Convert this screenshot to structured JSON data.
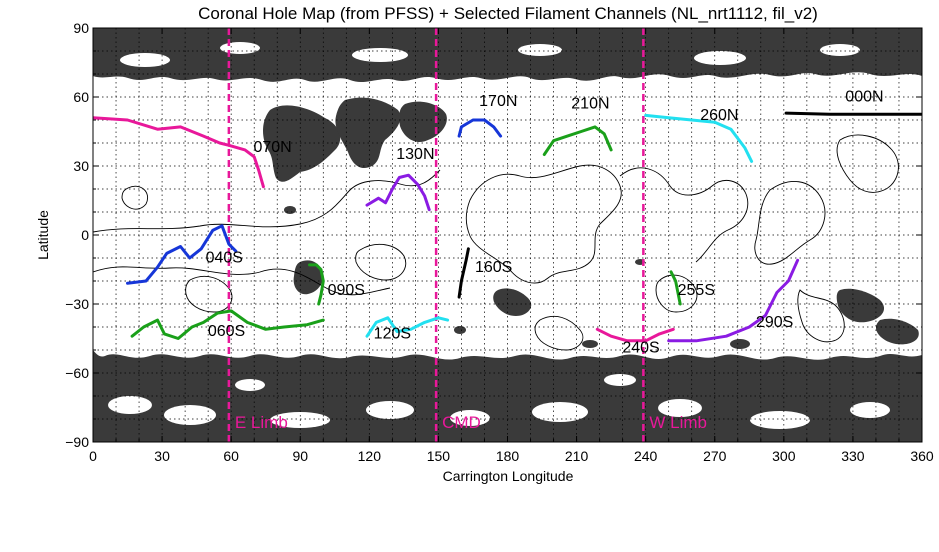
{
  "chart_data": {
    "type": "line",
    "title": "Coronal Hole Map (from PFSS) + Selected Filament Channels (NL_nrt1112, fil_v2)",
    "xlabel": "Carrington Longitude",
    "ylabel": "Latitude",
    "xlim": [
      0,
      360
    ],
    "ylim": [
      -90,
      90
    ],
    "xticks": [
      "0",
      "30",
      "60",
      "90",
      "120",
      "150",
      "180",
      "210",
      "240",
      "270",
      "300",
      "330",
      "360"
    ],
    "yticks": [
      "90",
      "60",
      "30",
      "0",
      "−30",
      "−60",
      "−90"
    ],
    "grid": true,
    "coronal_hole_color": "#3a3a3a",
    "limb_color": "#e8189a",
    "limbs": [
      {
        "name": "E Limb",
        "x": 59
      },
      {
        "name": "CMD",
        "x": 149
      },
      {
        "name": "W Limb",
        "x": 239
      }
    ],
    "channels": [
      {
        "name": "000N",
        "color": "#000000",
        "label_at": [
          335,
          58
        ],
        "points": [
          [
            301,
            53
          ],
          [
            320,
            52.5
          ],
          [
            340,
            52.5
          ],
          [
            360,
            52.5
          ]
        ]
      },
      {
        "name": "070N",
        "color": "#e8189a",
        "label_at": [
          78,
          36
        ],
        "points": [
          [
            0,
            51
          ],
          [
            15,
            50
          ],
          [
            28,
            46
          ],
          [
            38,
            47
          ],
          [
            48,
            43
          ],
          [
            55,
            40
          ],
          [
            59,
            39
          ]
        ]
      },
      {
        "name": "070N-b",
        "color": "#e8189a",
        "label_at": null,
        "points": [
          [
            59,
            39
          ],
          [
            66,
            37
          ],
          [
            70,
            34
          ],
          [
            72,
            28
          ],
          [
            74,
            21
          ]
        ]
      },
      {
        "name": "130N",
        "color": "#8a1be3",
        "label_at": [
          140,
          33
        ],
        "points": [
          [
            119,
            13
          ],
          [
            124,
            16
          ],
          [
            127,
            14
          ],
          [
            130,
            20
          ],
          [
            133,
            25
          ],
          [
            137,
            26
          ],
          [
            141,
            22
          ],
          [
            144,
            17
          ],
          [
            146,
            11
          ]
        ]
      },
      {
        "name": "170N",
        "color": "#1636d8",
        "label_at": [
          176,
          56
        ],
        "points": [
          [
            159,
            43
          ],
          [
            160,
            47
          ],
          [
            165,
            50
          ],
          [
            170,
            50
          ],
          [
            174,
            47
          ],
          [
            177,
            43
          ]
        ]
      },
      {
        "name": "210N",
        "color": "#1aa01a",
        "label_at": [
          216,
          55
        ],
        "points": [
          [
            196,
            35
          ],
          [
            200,
            41
          ],
          [
            206,
            43
          ],
          [
            212,
            45
          ],
          [
            218,
            47
          ],
          [
            222,
            44
          ],
          [
            225,
            37
          ]
        ]
      },
      {
        "name": "260N",
        "color": "#22e0f0",
        "label_at": [
          272,
          50
        ],
        "points": [
          [
            240,
            52
          ],
          [
            250,
            51
          ],
          [
            260,
            50
          ],
          [
            270,
            49
          ],
          [
            277,
            46
          ],
          [
            283,
            38
          ],
          [
            286,
            32
          ]
        ]
      },
      {
        "name": "040S",
        "color": "#1636d8",
        "label_at": [
          57,
          -12
        ],
        "points": [
          [
            15,
            -21
          ],
          [
            23,
            -20
          ],
          [
            28,
            -14
          ],
          [
            32,
            -8
          ],
          [
            38,
            -5
          ],
          [
            42,
            -10
          ],
          [
            47,
            -6
          ],
          [
            52,
            2
          ],
          [
            56,
            4
          ],
          [
            59,
            -4
          ],
          [
            62,
            -7
          ]
        ]
      },
      {
        "name": "060S",
        "color": "#1aa01a",
        "label_at": [
          58,
          -44
        ],
        "points": [
          [
            17,
            -44
          ],
          [
            22,
            -40
          ],
          [
            28,
            -37
          ],
          [
            31,
            -43
          ],
          [
            37,
            -45
          ],
          [
            43,
            -40
          ],
          [
            48,
            -38
          ],
          [
            54,
            -34
          ],
          [
            60,
            -33
          ],
          [
            67,
            -38
          ],
          [
            75,
            -41
          ],
          [
            83,
            -40
          ],
          [
            93,
            -39
          ],
          [
            100,
            -37
          ]
        ]
      },
      {
        "name": "090S",
        "color": "#1aa01a",
        "label_at": [
          110,
          -26
        ],
        "points": [
          [
            94,
            -13
          ],
          [
            97,
            -13
          ],
          [
            99,
            -15
          ],
          [
            100,
            -20
          ],
          [
            99,
            -26
          ],
          [
            98,
            -30
          ]
        ]
      },
      {
        "name": "120S",
        "color": "#22e0f0",
        "label_at": [
          130,
          -45
        ],
        "points": [
          [
            119,
            -44
          ],
          [
            123,
            -38
          ],
          [
            128,
            -36
          ],
          [
            132,
            -42
          ],
          [
            138,
            -41
          ],
          [
            144,
            -38
          ],
          [
            150,
            -36
          ],
          [
            154,
            -37
          ]
        ]
      },
      {
        "name": "160S",
        "color": "#000000",
        "label_at": [
          174,
          -16
        ],
        "points": [
          [
            159,
            -27
          ],
          [
            160,
            -20
          ],
          [
            162,
            -11
          ],
          [
            163,
            -6
          ]
        ]
      },
      {
        "name": "240S",
        "color": "#e8189a",
        "label_at": [
          238,
          -51
        ],
        "points": [
          [
            219,
            -41
          ],
          [
            225,
            -44
          ],
          [
            232,
            -46
          ],
          [
            240,
            -46
          ],
          [
            246,
            -43
          ],
          [
            252,
            -41
          ]
        ]
      },
      {
        "name": "255S",
        "color": "#1aa01a",
        "label_at": [
          262,
          -26
        ],
        "points": [
          [
            251,
            -16
          ],
          [
            253,
            -20
          ],
          [
            254,
            -25
          ],
          [
            255,
            -30
          ]
        ]
      },
      {
        "name": "290S",
        "color": "#8a1be3",
        "label_at": [
          296,
          -40
        ],
        "points": [
          [
            250,
            -46
          ],
          [
            262,
            -46
          ],
          [
            275,
            -44
          ],
          [
            285,
            -40
          ],
          [
            292,
            -35
          ],
          [
            297,
            -25
          ],
          [
            302,
            -20
          ],
          [
            306,
            -11
          ]
        ]
      }
    ]
  }
}
